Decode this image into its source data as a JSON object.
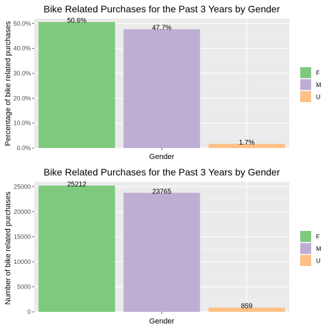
{
  "chart_data": [
    {
      "type": "bar",
      "title": "Bike Related Purchases for the Past 3 Years by Gender",
      "xlabel": "Gender",
      "ylabel": "Percentage of bike related purchases",
      "categories": [
        "F",
        "M",
        "U"
      ],
      "values": [
        50.6,
        47.7,
        1.7
      ],
      "value_labels": [
        "50.6%",
        "47.7%",
        "1.7%"
      ],
      "ylim": [
        0,
        52
      ],
      "yticks": [
        0,
        10,
        20,
        30,
        40,
        50
      ],
      "ytick_labels": [
        "0.0%",
        "10.0%",
        "20.0%",
        "30.0%",
        "40.0%",
        "50.0%"
      ],
      "grid": true,
      "legend": "right",
      "colors": {
        "F": "#7fc97f",
        "M": "#beaed4",
        "U": "#fdc086"
      }
    },
    {
      "type": "bar",
      "title": "Bike Related Purchases for the Past 3 Years by Gender",
      "xlabel": "Gender",
      "ylabel": "Number of bike related purchases",
      "categories": [
        "F",
        "M",
        "U"
      ],
      "values": [
        25212,
        23765,
        859
      ],
      "value_labels": [
        "25212",
        "23765",
        "859"
      ],
      "ylim": [
        0,
        26000
      ],
      "yticks": [
        0,
        5000,
        10000,
        15000,
        20000,
        25000
      ],
      "ytick_labels": [
        "0",
        "5000",
        "10000",
        "15000",
        "20000",
        "25000"
      ],
      "grid": true,
      "legend": "right",
      "colors": {
        "F": "#7fc97f",
        "M": "#beaed4",
        "U": "#fdc086"
      }
    }
  ]
}
